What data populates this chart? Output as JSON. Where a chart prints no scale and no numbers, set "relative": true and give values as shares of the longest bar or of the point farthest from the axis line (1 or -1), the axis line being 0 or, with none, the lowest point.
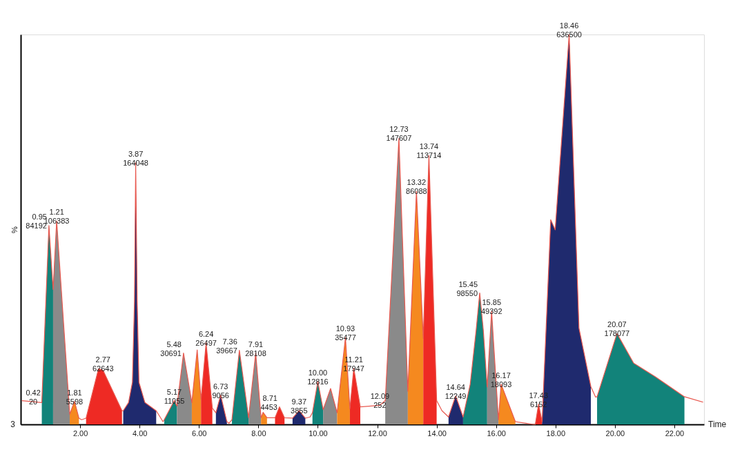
{
  "chart_data": {
    "type": "area",
    "relative": true,
    "ylabel": "%",
    "xlabel": "Time",
    "grid": false,
    "tick_labels": "x",
    "xlim": [
      0,
      23.0
    ],
    "xticks": [
      {
        "value": 2,
        "label": "2.00"
      },
      {
        "value": 4,
        "label": "4.00"
      },
      {
        "value": 6,
        "label": "6.00"
      },
      {
        "value": 8,
        "label": "8.00"
      },
      {
        "value": 10,
        "label": "10.00"
      },
      {
        "value": 12,
        "label": "12.00"
      },
      {
        "value": 14,
        "label": "14.00"
      },
      {
        "value": 16,
        "label": "16.00"
      },
      {
        "value": 18,
        "label": "18.00"
      },
      {
        "value": 20,
        "label": "20.00"
      },
      {
        "value": 22,
        "label": "22.00"
      }
    ],
    "series": [
      {
        "color": "#12837a",
        "x": [
          0.71,
          0.95,
          1.09
        ],
        "values": [
          0.056,
          0.51,
          0.346
        ]
      },
      {
        "color": "#8a8a8a",
        "x": [
          1.09,
          1.21,
          1.65
        ],
        "values": [
          0.346,
          0.522,
          0.026
        ]
      },
      {
        "color": "#f5891f",
        "x": [
          1.65,
          1.81,
          1.96
        ],
        "values": [
          0.026,
          0.059,
          0.016
        ]
      },
      {
        "color": "#ee2a24",
        "x": [
          2.2,
          2.62,
          2.77,
          3.41
        ],
        "values": [
          0.016,
          0.143,
          0.139,
          0.035
        ]
      },
      {
        "color": "#1f2a6e",
        "x": [
          3.45,
          3.63,
          3.76,
          3.83,
          3.87,
          3.92,
          3.98,
          4.18,
          4.56
        ],
        "values": [
          0.035,
          0.056,
          0.108,
          0.317,
          0.671,
          0.317,
          0.108,
          0.056,
          0.035
        ]
      },
      {
        "color": "#12837a",
        "x": [
          4.83,
          5.17,
          5.26
        ],
        "values": [
          0.012,
          0.061,
          0.047
        ]
      },
      {
        "color": "#8a8a8a",
        "x": [
          5.26,
          5.48,
          5.76
        ],
        "values": [
          0.047,
          0.183,
          0.056
        ]
      },
      {
        "color": "#f5891f",
        "x": [
          5.76,
          5.94,
          6.07
        ],
        "values": [
          0.056,
          0.191,
          0.064
        ]
      },
      {
        "color": "#ee2a24",
        "x": [
          6.07,
          6.24,
          6.45
        ],
        "values": [
          0.064,
          0.209,
          0.042
        ]
      },
      {
        "color": "#1f2a6e",
        "x": [
          6.57,
          6.73,
          6.94
        ],
        "values": [
          0.03,
          0.075,
          0.007
        ]
      },
      {
        "color": "#12837a",
        "x": [
          7.11,
          7.36,
          7.67
        ],
        "values": [
          0.012,
          0.19,
          0.017
        ]
      },
      {
        "color": "#8a8a8a",
        "x": [
          7.67,
          7.91,
          8.09
        ],
        "values": [
          0.017,
          0.183,
          0.017
        ]
      },
      {
        "color": "#f5891f",
        "x": [
          8.09,
          8.16,
          8.29
        ],
        "values": [
          0.017,
          0.031,
          0.017
        ]
      },
      {
        "color": "#ee2a24",
        "x": [
          8.56,
          8.71,
          8.88
        ],
        "values": [
          0.017,
          0.045,
          0.017
        ]
      },
      {
        "color": "#1f2a6e",
        "x": [
          9.15,
          9.37,
          9.58
        ],
        "values": [
          0.016,
          0.035,
          0.016
        ]
      },
      {
        "color": "#12837a",
        "x": [
          9.82,
          10.0,
          10.18
        ],
        "values": [
          0.03,
          0.11,
          0.038
        ]
      },
      {
        "color": "#8a8a8a",
        "x": [
          10.18,
          10.43,
          10.65
        ],
        "values": [
          0.038,
          0.092,
          0.03
        ]
      },
      {
        "color": "#f5891f",
        "x": [
          10.65,
          10.93,
          11.08
        ],
        "values": [
          0.03,
          0.223,
          0.04
        ]
      },
      {
        "color": "#ee2a24",
        "x": [
          11.08,
          11.21,
          11.43
        ],
        "values": [
          0.04,
          0.144,
          0.045
        ]
      },
      {
        "color": "#8a8a8a",
        "x": [
          12.27,
          12.73,
          13.03
        ],
        "values": [
          0.061,
          0.734,
          0.085
        ]
      },
      {
        "color": "#f5891f",
        "x": [
          13.03,
          13.32,
          13.55
        ],
        "values": [
          0.085,
          0.598,
          0.221
        ]
      },
      {
        "color": "#ee2a24",
        "x": [
          13.55,
          13.74,
          14.0
        ],
        "values": [
          0.221,
          0.69,
          0.061
        ]
      },
      {
        "color": "#1f2a6e",
        "x": [
          14.4,
          14.64,
          14.89
        ],
        "values": [
          0.019,
          0.073,
          0.019
        ]
      },
      {
        "color": "#12837a",
        "x": [
          14.89,
          15.13,
          15.33,
          15.45,
          15.57,
          15.7
        ],
        "values": [
          0.019,
          0.103,
          0.242,
          0.337,
          0.242,
          0.096
        ]
      },
      {
        "color": "#8a8a8a",
        "x": [
          15.7,
          15.85,
          16.08
        ],
        "values": [
          0.096,
          0.29,
          0.012
        ]
      },
      {
        "color": "#f5891f",
        "x": [
          16.08,
          16.17,
          16.65
        ],
        "values": [
          0.012,
          0.103,
          0.007
        ]
      },
      {
        "color": "#ee2a24",
        "x": [
          17.32,
          17.43,
          17.55
        ],
        "values": [
          0.0,
          0.052,
          0.007
        ]
      },
      {
        "color": "#1f2a6e",
        "x": [
          17.55,
          17.84,
          17.99,
          18.46,
          18.79,
          19.19
        ],
        "values": [
          0.007,
          0.525,
          0.499,
          1.0,
          0.247,
          0.097
        ]
      },
      {
        "color": "#12837a",
        "x": [
          19.4,
          20.07,
          20.63,
          21.36,
          22.34
        ],
        "values": [
          0.071,
          0.233,
          0.157,
          0.122,
          0.071
        ]
      },
      {
        "type": "line",
        "color": "#e8584f",
        "x": [
          0.04,
          0.71,
          0.95,
          1.09,
          1.21,
          1.65,
          1.81,
          1.96,
          2.05,
          2.2,
          2.62,
          2.77,
          3.41,
          3.45,
          3.63,
          3.76,
          3.83,
          3.87,
          3.92,
          3.98,
          4.18,
          4.56,
          4.79,
          4.83,
          5.17,
          5.26,
          5.48,
          5.76,
          5.94,
          6.07,
          6.24,
          6.45,
          6.57,
          6.73,
          6.94,
          7.01,
          7.11,
          7.36,
          7.67,
          7.91,
          8.09,
          8.16,
          8.29,
          8.56,
          8.71,
          8.88,
          9.15,
          9.37,
          9.58,
          9.74,
          9.82,
          10.0,
          10.18,
          10.43,
          10.65,
          10.93,
          11.08,
          11.21,
          11.43,
          12.09,
          12.27,
          12.73,
          13.03,
          13.32,
          13.55,
          13.74,
          14.0,
          14.18,
          14.4,
          14.64,
          14.89,
          15.13,
          15.33,
          15.45,
          15.57,
          15.7,
          15.85,
          16.08,
          16.17,
          16.65,
          17.26,
          17.32,
          17.43,
          17.55,
          17.84,
          17.99,
          18.46,
          18.79,
          19.19,
          19.35,
          19.4,
          20.07,
          20.63,
          21.36,
          22.34,
          22.97
        ],
        "values": [
          0.061,
          0.056,
          0.51,
          0.346,
          0.522,
          0.026,
          0.059,
          0.016,
          0.012,
          0.016,
          0.143,
          0.139,
          0.035,
          0.035,
          0.056,
          0.108,
          0.317,
          0.671,
          0.317,
          0.108,
          0.056,
          0.035,
          0.007,
          0.012,
          0.061,
          0.047,
          0.183,
          0.056,
          0.191,
          0.064,
          0.209,
          0.042,
          0.03,
          0.075,
          0.007,
          0.003,
          0.012,
          0.19,
          0.017,
          0.183,
          0.017,
          0.031,
          0.017,
          0.017,
          0.045,
          0.017,
          0.016,
          0.035,
          0.016,
          0.019,
          0.03,
          0.11,
          0.038,
          0.092,
          0.03,
          0.223,
          0.04,
          0.144,
          0.045,
          0.049,
          0.061,
          0.734,
          0.085,
          0.598,
          0.221,
          0.69,
          0.061,
          0.035,
          0.019,
          0.073,
          0.019,
          0.103,
          0.242,
          0.337,
          0.242,
          0.096,
          0.29,
          0.012,
          0.103,
          0.007,
          0.0,
          0.0,
          0.052,
          0.007,
          0.525,
          0.499,
          1.0,
          0.247,
          0.097,
          0.07,
          0.071,
          0.233,
          0.157,
          0.122,
          0.071,
          0.057
        ]
      }
    ],
    "annotations": [
      "3",
      {
        "text": "0.42\n20",
        "x": 0.42,
        "y": 0.059
      },
      {
        "text": "0.95\n84192",
        "x": 0.95,
        "y": 0.51
      },
      {
        "text": "1.21\n106383",
        "x": 1.21,
        "y": 0.522
      },
      {
        "text": "1.81\n5598",
        "x": 1.81,
        "y": 0.059
      },
      {
        "text": "2.77\n62643",
        "x": 2.77,
        "y": 0.143
      },
      {
        "text": "3.87\n164048",
        "x": 3.87,
        "y": 0.671
      },
      {
        "text": "5.17\n11055",
        "x": 5.17,
        "y": 0.061
      },
      {
        "text": "5.48\n30691",
        "x": 5.48,
        "y": 0.183
      },
      {
        "text": "6.24\n26497",
        "x": 6.24,
        "y": 0.209
      },
      {
        "text": "6.73\n9056",
        "x": 6.73,
        "y": 0.075
      },
      {
        "text": "7.36\n39667",
        "x": 7.36,
        "y": 0.19
      },
      {
        "text": "7.91\n28108",
        "x": 7.91,
        "y": 0.183
      },
      {
        "text": "8.71\n4453",
        "x": 8.71,
        "y": 0.045
      },
      {
        "text": "9.37\n3855",
        "x": 9.37,
        "y": 0.035
      },
      {
        "text": "10.00\n12816",
        "x": 10.0,
        "y": 0.11
      },
      {
        "text": "10.93\n35477",
        "x": 10.93,
        "y": 0.223
      },
      {
        "text": "11.21\n17947",
        "x": 11.21,
        "y": 0.144
      },
      {
        "text": "12.09\n252",
        "x": 12.09,
        "y": 0.049
      },
      {
        "text": "12.73\n147607",
        "x": 12.73,
        "y": 0.734
      },
      {
        "text": "13.32\n86088",
        "x": 13.32,
        "y": 0.598
      },
      {
        "text": "13.74\n113714",
        "x": 13.74,
        "y": 0.69
      },
      {
        "text": "14.64\n12249",
        "x": 14.64,
        "y": 0.073
      },
      {
        "text": "15.45\n98550",
        "x": 15.45,
        "y": 0.337
      },
      {
        "text": "15.85\n49392",
        "x": 15.85,
        "y": 0.29
      },
      {
        "text": "16.17\n18093",
        "x": 16.17,
        "y": 0.103
      },
      {
        "text": "17.43\n6152",
        "x": 17.43,
        "y": 0.052
      },
      {
        "text": "18.46\n636500",
        "x": 18.46,
        "y": 1.0
      },
      {
        "text": "20.07\n178077",
        "x": 20.07,
        "y": 0.233
      }
    ]
  }
}
